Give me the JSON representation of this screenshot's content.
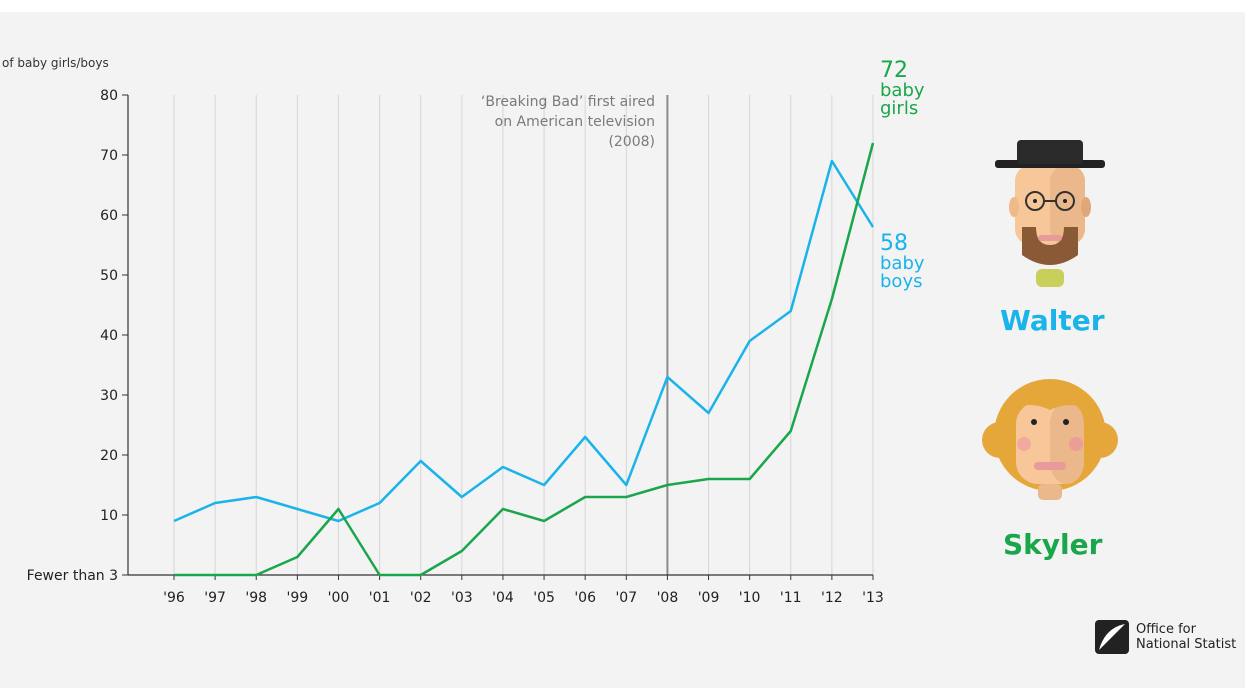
{
  "chart_data": {
    "type": "line",
    "ylabel": "of baby girls/boys",
    "x": [
      "'96",
      "'97",
      "'98",
      "'99",
      "'00",
      "'01",
      "'02",
      "'03",
      "'04",
      "'05",
      "'06",
      "'07",
      "'08",
      "'09",
      "'10",
      "'11",
      "'12",
      "'13"
    ],
    "y_ticks": [
      {
        "value": 0,
        "label": "Fewer than 3"
      },
      {
        "value": 10,
        "label": "10"
      },
      {
        "value": 20,
        "label": "20"
      },
      {
        "value": 30,
        "label": "30"
      },
      {
        "value": 40,
        "label": "40"
      },
      {
        "value": 50,
        "label": "50"
      },
      {
        "value": 60,
        "label": "60"
      },
      {
        "value": 70,
        "label": "70"
      },
      {
        "value": 80,
        "label": "80"
      }
    ],
    "ylim": [
      0,
      80
    ],
    "grid": "vertical",
    "series": [
      {
        "name": "Walter",
        "color": "#1ab3ea",
        "values": [
          9,
          12,
          13,
          11,
          9,
          12,
          19,
          13,
          18,
          15,
          23,
          15,
          33,
          27,
          39,
          44,
          69,
          58
        ]
      },
      {
        "name": "Skyler",
        "color": "#1aa64b",
        "values": [
          0,
          0,
          0,
          3,
          11,
          0,
          0,
          4,
          11,
          9,
          13,
          13,
          15,
          16,
          16,
          24,
          46,
          72
        ]
      }
    ],
    "annotation": {
      "x": "'08",
      "lines": [
        "‘Breaking Bad’ first aired",
        "on American television",
        "(2008)"
      ]
    },
    "callouts": {
      "girls": {
        "value": "72",
        "line1": "baby",
        "line2": "girls"
      },
      "boys": {
        "value": "58",
        "line1": "baby",
        "line2": "boys"
      }
    }
  },
  "characters": {
    "walter": {
      "name": "Walter"
    },
    "skyler": {
      "name": "Skyler"
    }
  },
  "logo": {
    "line1": "Office for",
    "line2": "National Statist"
  }
}
